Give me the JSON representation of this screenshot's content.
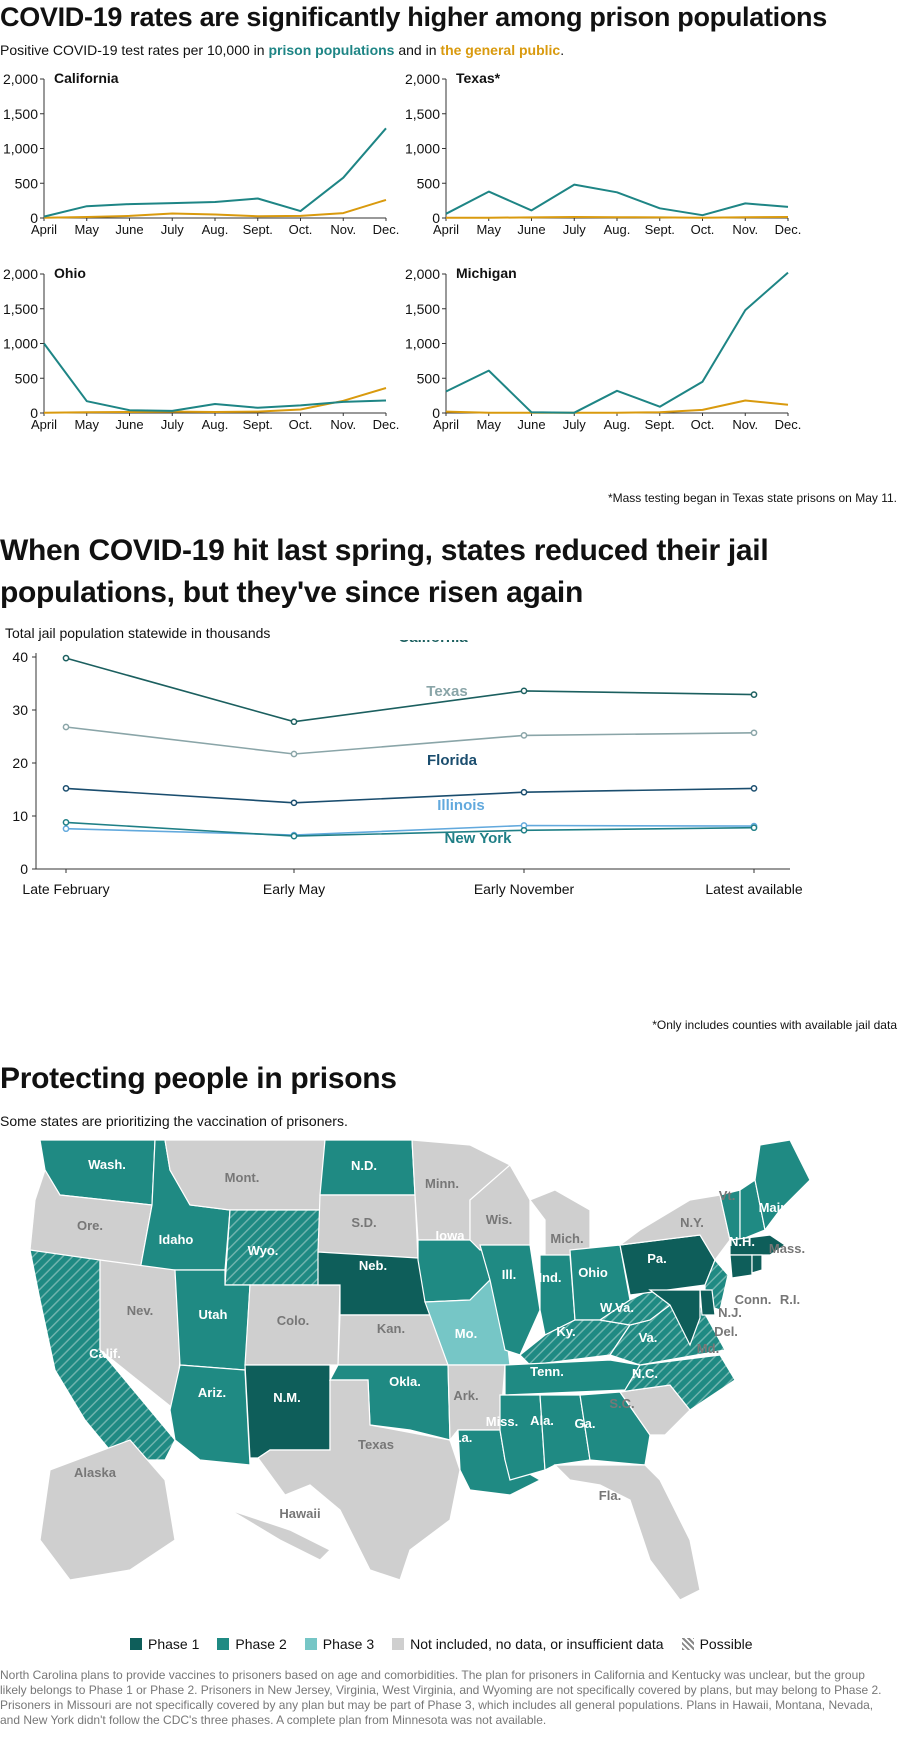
{
  "section1": {
    "title": "COVID-19 rates are significantly higher among prison populations",
    "subtitle_pre": "Positive COVID-19 test rates per 10,000 in ",
    "subtitle_prison": "prison populations",
    "subtitle_mid": " and in ",
    "subtitle_public": "the general public",
    "subtitle_post": ".",
    "note": "*Mass testing began in Texas state prisons on May 11."
  },
  "section2": {
    "title_line1": "When COVID-19 hit last spring, states reduced their jail",
    "title_line2": "populations, but they've since risen again",
    "note": "*Only includes counties with available jail data"
  },
  "section3": {
    "title": "Protecting people in prisons",
    "subtitle": "Some states are prioritizing the vaccination of prisoners.",
    "footnote": "North Carolina plans to provide vaccines to prisoners based on age and comorbidities. The plan for prisoners in California and Kentucky was unclear, but the group likely belongs to Phase 1 or Phase 2. Prisoners in New Jersey, Virginia, West Virginia, and Wyoming are not specifically covered by plans, but may belong to Phase 2. Prisoners in Missouri are not specifically covered by any plan but may be part of Phase 3, which includes all general populations. Plans in Hawaii, Montana, Nevada, and New York didn't follow the CDC's three phases. A complete plan from Minnesota was not available.",
    "legend": [
      {
        "label": "Phase 1",
        "color": "#0e5e5a"
      },
      {
        "label": "Phase 2",
        "color": "#1f8a83"
      },
      {
        "label": "Phase 3",
        "color": "#76c6c6"
      },
      {
        "label": "Not included, no data, or insufficient data",
        "color": "#cfcfcf"
      },
      {
        "label": "Possible",
        "color": "hatch"
      }
    ]
  },
  "colors": {
    "prison": "#1e8585",
    "public": "#d99a0e",
    "california": "#1b5f5f",
    "texas": "#8aa5a8",
    "florida": "#1a4d6e",
    "illinois": "#62a9dd",
    "newyork": "#1f7f86",
    "axis": "#333333"
  },
  "chart_data": [
    {
      "type": "line",
      "title": "California",
      "categories": [
        "April",
        "May",
        "June",
        "July",
        "Aug.",
        "Sept.",
        "Oct.",
        "Nov.",
        "Dec."
      ],
      "ylim": [
        0,
        2000
      ],
      "yticks": [
        "0",
        "500",
        "1,000",
        "1,500",
        "2,000"
      ],
      "series": [
        {
          "name": "prison populations",
          "values": [
            20,
            170,
            200,
            215,
            230,
            280,
            100,
            580,
            1290
          ]
        },
        {
          "name": "the general public",
          "values": [
            5,
            15,
            30,
            65,
            50,
            25,
            30,
            70,
            260
          ]
        }
      ]
    },
    {
      "type": "line",
      "title": "Texas*",
      "categories": [
        "April",
        "May",
        "June",
        "July",
        "Aug.",
        "Sept.",
        "Oct.",
        "Nov.",
        "Dec."
      ],
      "ylim": [
        0,
        2000
      ],
      "yticks": [
        "0",
        "500",
        "1,000",
        "1,500",
        "2,000"
      ],
      "series": [
        {
          "name": "prison populations",
          "values": [
            60,
            380,
            110,
            480,
            370,
            140,
            40,
            210,
            160
          ]
        },
        {
          "name": "the general public",
          "values": [
            3,
            5,
            8,
            15,
            12,
            8,
            5,
            10,
            15
          ]
        }
      ]
    },
    {
      "type": "line",
      "title": "Ohio",
      "categories": [
        "April",
        "May",
        "June",
        "July",
        "Aug.",
        "Sept.",
        "Oct.",
        "Nov.",
        "Dec."
      ],
      "ylim": [
        0,
        2000
      ],
      "yticks": [
        "0",
        "500",
        "1,000",
        "1,500",
        "2,000"
      ],
      "series": [
        {
          "name": "prison populations",
          "values": [
            1000,
            170,
            40,
            30,
            130,
            75,
            110,
            160,
            180
          ]
        },
        {
          "name": "the general public",
          "values": [
            5,
            10,
            15,
            20,
            15,
            20,
            50,
            175,
            360
          ]
        }
      ]
    },
    {
      "type": "line",
      "title": "Michigan",
      "categories": [
        "April",
        "May",
        "June",
        "July",
        "Aug.",
        "Sept.",
        "Oct.",
        "Nov.",
        "Dec."
      ],
      "ylim": [
        0,
        2000
      ],
      "yticks": [
        "0",
        "500",
        "1,000",
        "1,500",
        "2,000"
      ],
      "series": [
        {
          "name": "prison populations",
          "values": [
            310,
            610,
            10,
            5,
            320,
            90,
            450,
            1480,
            2020
          ]
        },
        {
          "name": "the general public",
          "values": [
            20,
            5,
            5,
            5,
            5,
            10,
            45,
            180,
            120
          ]
        }
      ]
    },
    {
      "type": "line",
      "title": "",
      "ylabel": "Total jail population statewide in thousands",
      "categories": [
        "Late February",
        "Early May",
        "Early November",
        "Latest available"
      ],
      "ylim": [
        0,
        40
      ],
      "yticks": [
        "0",
        "10",
        "20",
        "30",
        "40"
      ],
      "series": [
        {
          "name": "California",
          "values": [
            39.8,
            27.8,
            33.6,
            32.9
          ]
        },
        {
          "name": "Texas",
          "values": [
            26.8,
            21.7,
            25.2,
            25.7
          ]
        },
        {
          "name": "Florida",
          "values": [
            15.2,
            12.5,
            14.5,
            15.2
          ]
        },
        {
          "name": "Illinois",
          "values": [
            7.6,
            6.4,
            8.2,
            8.1
          ]
        },
        {
          "name": "New York",
          "values": [
            8.8,
            6.2,
            7.3,
            7.8
          ]
        }
      ]
    }
  ],
  "map": {
    "states": [
      {
        "label": "Wash.",
        "phase": 2
      },
      {
        "label": "Ore.",
        "phase": 0
      },
      {
        "label": "Calif.",
        "phase": 2,
        "possible": true
      },
      {
        "label": "Idaho",
        "phase": 2
      },
      {
        "label": "Nev.",
        "phase": 0
      },
      {
        "label": "Mont.",
        "phase": 0
      },
      {
        "label": "Wyo.",
        "phase": 2,
        "possible": true
      },
      {
        "label": "Utah",
        "phase": 2
      },
      {
        "label": "Ariz.",
        "phase": 2
      },
      {
        "label": "Colo.",
        "phase": 0
      },
      {
        "label": "N.M.",
        "phase": 1
      },
      {
        "label": "N.D.",
        "phase": 2
      },
      {
        "label": "S.D.",
        "phase": 0
      },
      {
        "label": "Neb.",
        "phase": 1
      },
      {
        "label": "Kan.",
        "phase": 0
      },
      {
        "label": "Okla.",
        "phase": 2
      },
      {
        "label": "Texas",
        "phase": 0
      },
      {
        "label": "Minn.",
        "phase": 0
      },
      {
        "label": "Iowa",
        "phase": 2
      },
      {
        "label": "Mo.",
        "phase": 3
      },
      {
        "label": "Ark.",
        "phase": 0
      },
      {
        "label": "La.",
        "phase": 2
      },
      {
        "label": "Wis.",
        "phase": 0
      },
      {
        "label": "Ill.",
        "phase": 2
      },
      {
        "label": "Mich.",
        "phase": 0
      },
      {
        "label": "Ind.",
        "phase": 2
      },
      {
        "label": "Ohio",
        "phase": 2
      },
      {
        "label": "Ky.",
        "phase": 2,
        "possible": true
      },
      {
        "label": "Tenn.",
        "phase": 2
      },
      {
        "label": "Miss.",
        "phase": 2
      },
      {
        "label": "Ala.",
        "phase": 2
      },
      {
        "label": "Ga.",
        "phase": 2
      },
      {
        "label": "Fla.",
        "phase": 0
      },
      {
        "label": "S.C.",
        "phase": 0
      },
      {
        "label": "N.C.",
        "phase": 2,
        "possible": true
      },
      {
        "label": "Va.",
        "phase": 2,
        "possible": true
      },
      {
        "label": "W.Va.",
        "phase": 2,
        "possible": true
      },
      {
        "label": "Pa.",
        "phase": 1
      },
      {
        "label": "N.Y.",
        "phase": 0
      },
      {
        "label": "Vt.",
        "phase": 2
      },
      {
        "label": "N.H.",
        "phase": 2
      },
      {
        "label": "Maine",
        "phase": 2
      },
      {
        "label": "Mass.",
        "phase": 1
      },
      {
        "label": "Conn.",
        "phase": 1
      },
      {
        "label": "R.I.",
        "phase": 1
      },
      {
        "label": "N.J.",
        "phase": 2,
        "possible": true
      },
      {
        "label": "Del.",
        "phase": 1
      },
      {
        "label": "Md.",
        "phase": 1
      },
      {
        "label": "Alaska",
        "phase": 0
      },
      {
        "label": "Hawaii",
        "phase": 0
      }
    ]
  }
}
